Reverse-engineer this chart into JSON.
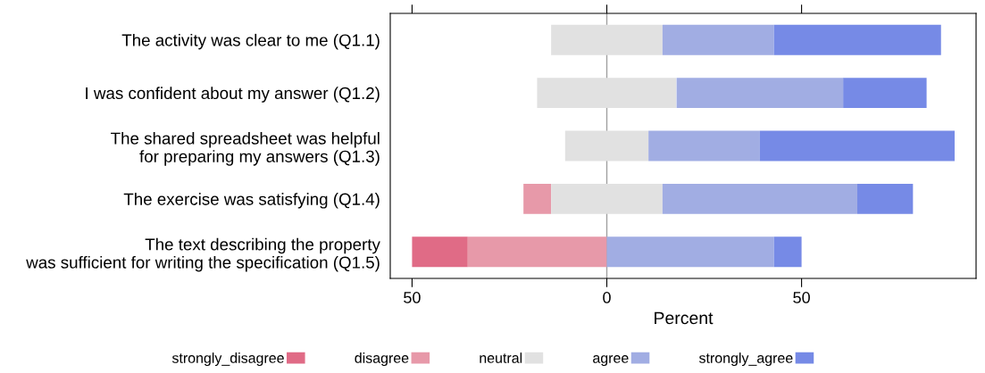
{
  "chart_data": {
    "type": "bar",
    "orientation": "horizontal",
    "xlabel": "Percent",
    "categories": [
      "The activity was clear to me (Q1.1)",
      "I was confident about my answer (Q1.2)",
      "The shared spreadsheet was helpful\nfor preparing my answers (Q1.3)",
      "The exercise was satisfying (Q1.4)",
      "The text describing the property\nwas sufficient for writing the specification (Q1.5)"
    ],
    "series": [
      {
        "name": "strongly_disagree",
        "color": "#e06b86",
        "values": [
          null,
          null,
          null,
          null,
          14.3
        ],
        "base": [
          null,
          null,
          null,
          null,
          -50.0
        ]
      },
      {
        "name": "disagree",
        "color": "#e799a9",
        "values": [
          null,
          null,
          null,
          7.1,
          35.7
        ],
        "base": [
          null,
          null,
          null,
          -21.4,
          -35.7
        ]
      },
      {
        "name": "neutral",
        "color": "#e1e1e1",
        "values": [
          28.6,
          35.7,
          21.4,
          28.6,
          null
        ],
        "base": [
          -14.3,
          -17.9,
          -10.7,
          -14.3,
          null
        ]
      },
      {
        "name": "agree",
        "color": "#a1ade3",
        "values": [
          28.6,
          42.9,
          28.6,
          50.0,
          42.9
        ],
        "base": [
          14.3,
          17.9,
          10.7,
          14.3,
          0
        ]
      },
      {
        "name": "strongly_agree",
        "color": "#768ae6",
        "values": [
          42.9,
          21.4,
          50.0,
          14.3,
          7.1
        ],
        "base": [
          42.9,
          60.7,
          39.3,
          64.3,
          42.9
        ]
      }
    ],
    "xlim": [
      -55.6,
      94.8
    ],
    "xticks": [
      {
        "value": -50,
        "label": "50"
      },
      0,
      50
    ],
    "ref_lines": [
      {
        "axis": "x",
        "value": 0,
        "color": "#a0a0a0"
      }
    ],
    "grid": false,
    "legend": "bottom"
  }
}
